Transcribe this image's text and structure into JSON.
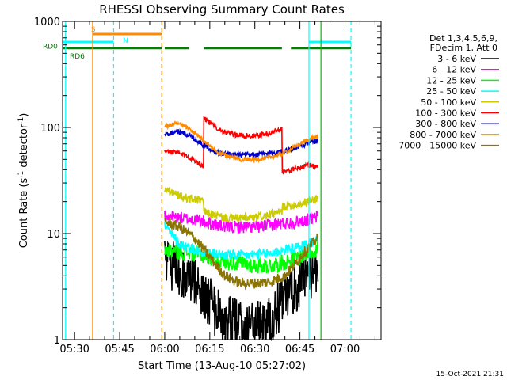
{
  "chart_data": {
    "type": "line",
    "title": "RHESSI Observing Summary Count Rates",
    "xlabel": "Start Time (13-Aug-10 05:27:02)",
    "ylabel_parts": [
      "Count Rate (s",
      "-1",
      " detector",
      "-1",
      ")"
    ],
    "yscale": "log",
    "ylim": [
      1,
      1000
    ],
    "xlim": [
      "05:26",
      "07:12"
    ],
    "x_ticks": [
      "05:30",
      "05:45",
      "06:00",
      "06:15",
      "06:30",
      "06:45",
      "07:00"
    ],
    "y_ticks": [
      "1",
      "10",
      "100",
      "1000"
    ],
    "timestamp": "15-Oct-2021 21:31",
    "legend": {
      "header": [
        "Det 1,3,4,5,6,9,",
        "FDecim 1, Att 0"
      ],
      "placement": "right"
    },
    "flags": [
      {
        "label": "S",
        "color": "#ff8c00",
        "y": 760,
        "segments": [
          [
            "05:36",
            "05:59"
          ]
        ]
      },
      {
        "label": "N",
        "color": "#00ffff",
        "y": 640,
        "segments": [
          [
            "05:26",
            "05:43"
          ],
          [
            "06:48",
            "07:02"
          ]
        ]
      },
      {
        "label": "RD0",
        "color": "#008000",
        "y": 560,
        "segments": [
          [
            "05:26",
            "05:59"
          ],
          [
            "06:00",
            "06:08"
          ],
          [
            "06:13",
            "06:39"
          ],
          [
            "06:42",
            "07:02"
          ]
        ]
      },
      {
        "label": "RD6",
        "color": "#008000",
        "y": 495,
        "segments": []
      }
    ],
    "vlines": [
      {
        "t": "05:27",
        "color": "#00ffff",
        "dash": false
      },
      {
        "t": "05:36",
        "color": "#ff8c00",
        "dash": false
      },
      {
        "t": "05:43",
        "color": "#00ffff",
        "dash": true
      },
      {
        "t": "05:59",
        "color": "#ff8c00",
        "dash": true
      },
      {
        "t": "06:48",
        "color": "#00ffff",
        "dash": false
      },
      {
        "t": "06:52",
        "color": "#00c000",
        "dash": false
      },
      {
        "t": "07:02",
        "color": "#00ffff",
        "dash": true
      }
    ],
    "series": [
      {
        "name": "3 - 6 keV",
        "color": "#000000",
        "x": [
          "06:00",
          "06:03",
          "06:07",
          "06:12",
          "06:16",
          "06:20",
          "06:25",
          "06:30",
          "06:35",
          "06:39",
          "06:42",
          "06:45",
          "06:49",
          "06:51"
        ],
        "y": [
          6,
          5,
          4,
          3,
          2,
          1.5,
          1.4,
          1.4,
          1.5,
          2.2,
          2.8,
          3.5,
          4.3,
          4.6
        ],
        "noise": 0.25
      },
      {
        "name": "6 - 12 keV",
        "color": "#ff00ff",
        "x": [
          "06:00",
          "06:05",
          "06:10",
          "06:15",
          "06:20",
          "06:30",
          "06:35",
          "06:40",
          "06:45",
          "06:50",
          "06:51"
        ],
        "y": [
          15,
          14,
          13.5,
          12.5,
          11.5,
          11.5,
          12,
          12.5,
          13,
          14,
          14.5
        ],
        "noise": 0.06
      },
      {
        "name": "12 - 25 keV",
        "color": "#00ff00",
        "x": [
          "06:00",
          "06:05",
          "06:10",
          "06:15",
          "06:20",
          "06:30",
          "06:35",
          "06:40",
          "06:45",
          "06:50",
          "06:51"
        ],
        "y": [
          7,
          6.8,
          6.5,
          6,
          5.5,
          5,
          5,
          5.4,
          6,
          7,
          7.5
        ],
        "noise": 0.08
      },
      {
        "name": "25 - 50 keV",
        "color": "#00ffff",
        "x": [
          "06:00",
          "06:02",
          "06:05",
          "06:10",
          "06:15",
          "06:20",
          "06:25",
          "06:30",
          "06:35",
          "06:40",
          "06:45",
          "06:50",
          "06:51"
        ],
        "y": [
          12,
          10,
          8,
          7,
          6.5,
          6.3,
          6.2,
          6.3,
          6.5,
          7,
          7.5,
          8.5,
          9
        ],
        "noise": 0.05
      },
      {
        "name": "50 - 100 keV",
        "color": "#cccc00",
        "x": [
          "06:00",
          "06:03",
          "06:06",
          "06:10",
          "06:13",
          "06:13",
          "06:20",
          "06:30",
          "06:35",
          "06:39",
          "06:39",
          "06:45",
          "06:50",
          "06:51"
        ],
        "y": [
          26,
          24,
          22,
          21,
          20,
          16,
          14,
          14,
          15,
          16,
          18,
          19,
          21,
          22
        ],
        "noise": 0.04
      },
      {
        "name": "100 - 300 keV",
        "color": "#ff0000",
        "x": [
          "06:00",
          "06:04",
          "06:08",
          "06:11",
          "06:13",
          "06:13",
          "06:16",
          "06:20",
          "06:25",
          "06:30",
          "06:35",
          "06:39",
          "06:39",
          "06:44",
          "06:48",
          "06:51"
        ],
        "y": [
          60,
          58,
          53,
          47,
          43,
          125,
          105,
          90,
          84,
          83,
          88,
          98,
          38,
          41,
          44,
          43
        ],
        "noise": 0.025
      },
      {
        "name": "300 - 800 keV",
        "color": "#0000cd",
        "x": [
          "06:00",
          "06:04",
          "06:08",
          "06:13",
          "06:18",
          "06:25",
          "06:30",
          "06:35",
          "06:40",
          "06:45",
          "06:49",
          "06:51"
        ],
        "y": [
          85,
          92,
          85,
          68,
          57,
          55,
          55,
          57,
          60,
          67,
          73,
          75
        ],
        "noise": 0.025
      },
      {
        "name": "800 - 7000 keV",
        "color": "#ff8c00",
        "x": [
          "06:00",
          "06:04",
          "06:08",
          "06:13",
          "06:18",
          "06:25",
          "06:30",
          "06:35",
          "06:40",
          "06:45",
          "06:49",
          "06:51"
        ],
        "y": [
          102,
          110,
          98,
          75,
          57,
          50,
          50,
          52,
          58,
          70,
          80,
          82
        ],
        "noise": 0.02
      },
      {
        "name": "7000 - 15000 keV",
        "color": "#8b7500",
        "x": [
          "06:00",
          "06:05",
          "06:10",
          "06:15",
          "06:20",
          "06:25",
          "06:30",
          "06:35",
          "06:40",
          "06:43",
          "06:46",
          "06:50",
          "06:51"
        ],
        "y": [
          13,
          11.5,
          9,
          6,
          4,
          3.4,
          3.4,
          3.5,
          4,
          5,
          6.5,
          8.5,
          9
        ],
        "noise": 0.05
      }
    ]
  }
}
